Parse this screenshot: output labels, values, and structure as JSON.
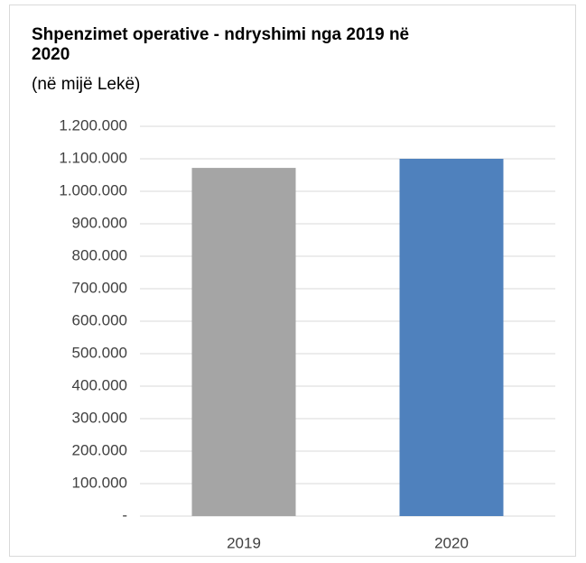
{
  "chart_data": {
    "type": "bar",
    "title": "Shpenzimet operative - ndryshimi nga 2019 në 2020",
    "subtitle": "(në mijë Lekë)",
    "categories": [
      "2019",
      "2020"
    ],
    "values": [
      1072000,
      1100000
    ],
    "colors": [
      "#a5a5a5",
      "#4f81bd"
    ],
    "ylim": [
      0,
      1200000
    ],
    "yticks": [
      {
        "value": 0,
        "label": "-"
      },
      {
        "value": 100000,
        "label": "100.000"
      },
      {
        "value": 200000,
        "label": "200.000"
      },
      {
        "value": 300000,
        "label": "300.000"
      },
      {
        "value": 400000,
        "label": "400.000"
      },
      {
        "value": 500000,
        "label": "500.000"
      },
      {
        "value": 600000,
        "label": "600.000"
      },
      {
        "value": 700000,
        "label": "700.000"
      },
      {
        "value": 800000,
        "label": "800.000"
      },
      {
        "value": 900000,
        "label": "900.000"
      },
      {
        "value": 1000000,
        "label": "1.000.000"
      },
      {
        "value": 1100000,
        "label": "1.100.000"
      },
      {
        "value": 1200000,
        "label": "1.200.000"
      }
    ],
    "grid": true
  }
}
